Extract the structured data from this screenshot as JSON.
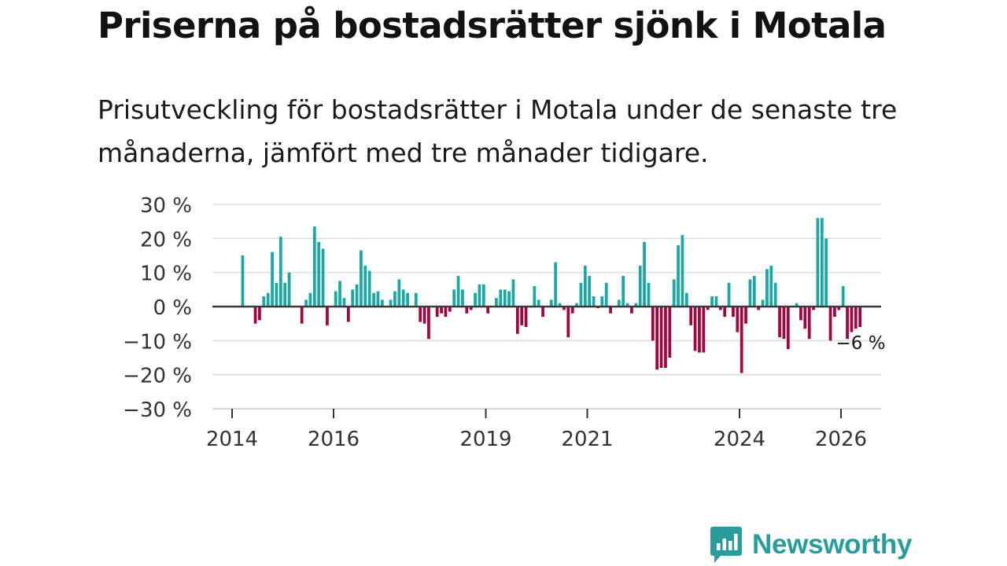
{
  "header": {
    "title": "Priserna på bostadsrätter sjönk i Motala",
    "subtitle": "Prisutveckling för bostadsrätter i Motala under de senaste tre månaderna, jämfört med tre månader tidigare."
  },
  "chart_data": {
    "type": "bar",
    "title": "Priserna på bostadsrätter sjönk i Motala",
    "subtitle": "Prisutveckling för bostadsrätter i Motala under de senaste tre månaderna, jämfört med tre månader tidigare.",
    "xlabel": "",
    "ylabel": "",
    "x_start": 2014.0,
    "x_step_months": 1,
    "xlim": [
      2013.8,
      2027.2
    ],
    "ylim": [
      -30,
      30
    ],
    "y_ticks": [
      30,
      20,
      10,
      0,
      -10,
      -20,
      -30
    ],
    "y_tick_labels": [
      "30 %",
      "20 %",
      "10 %",
      "0 %",
      "−10 %",
      "−20 %",
      "−30 %"
    ],
    "x_ticks": [
      2014,
      2016,
      2019,
      2021,
      2024,
      2026
    ],
    "x_tick_labels": [
      "2014",
      "2016",
      "2019",
      "2021",
      "2024",
      "2026"
    ],
    "grid": true,
    "colors": {
      "positive": "#1ba8a4",
      "negative": "#a0073f",
      "zero_line": "#3a3a3a",
      "grid": "#dddddd"
    },
    "annotation": {
      "text": "−6 %",
      "value": -6
    },
    "values": [
      null,
      null,
      15,
      null,
      null,
      -5,
      -4,
      3,
      4,
      16,
      7,
      20.5,
      7,
      10,
      null,
      null,
      -5,
      2,
      4,
      23.5,
      19,
      17,
      -5.5,
      null,
      4.5,
      7.5,
      2.5,
      -4.5,
      5,
      6.5,
      16.5,
      12,
      10.5,
      4,
      4.5,
      2,
      null,
      2,
      4.5,
      8,
      5,
      4,
      null,
      4,
      -4.5,
      -5,
      -9.5,
      null,
      -3,
      -2,
      -3,
      -1.5,
      5,
      9,
      5,
      -2,
      -1,
      4,
      6.5,
      6.5,
      -2,
      null,
      2.5,
      5,
      5,
      4.5,
      8,
      -8,
      -5.5,
      -6,
      null,
      6,
      2,
      -3,
      null,
      2,
      13,
      1,
      -1,
      -9,
      -2,
      1,
      7,
      12,
      9,
      3,
      -0.5,
      3,
      7,
      -2,
      null,
      2,
      9,
      1,
      -2,
      1,
      12,
      19,
      7,
      -10,
      -18.5,
      -18,
      -18,
      -15,
      8,
      18,
      21,
      4,
      -5.5,
      -13,
      -13.5,
      -13.5,
      -1,
      3,
      3,
      -1,
      -3,
      7,
      -3,
      -7.5,
      -19.5,
      -5,
      8,
      9,
      -1,
      2,
      11,
      12,
      7,
      -9,
      -9.5,
      -12.5,
      null,
      1,
      -4,
      -6.5,
      -9.5,
      -1,
      26,
      26,
      20,
      -10,
      -3,
      -1,
      6,
      -9.5,
      -7.5,
      -6.5,
      -6
    ]
  },
  "footer": {
    "logo_text": "Newsworthy"
  }
}
